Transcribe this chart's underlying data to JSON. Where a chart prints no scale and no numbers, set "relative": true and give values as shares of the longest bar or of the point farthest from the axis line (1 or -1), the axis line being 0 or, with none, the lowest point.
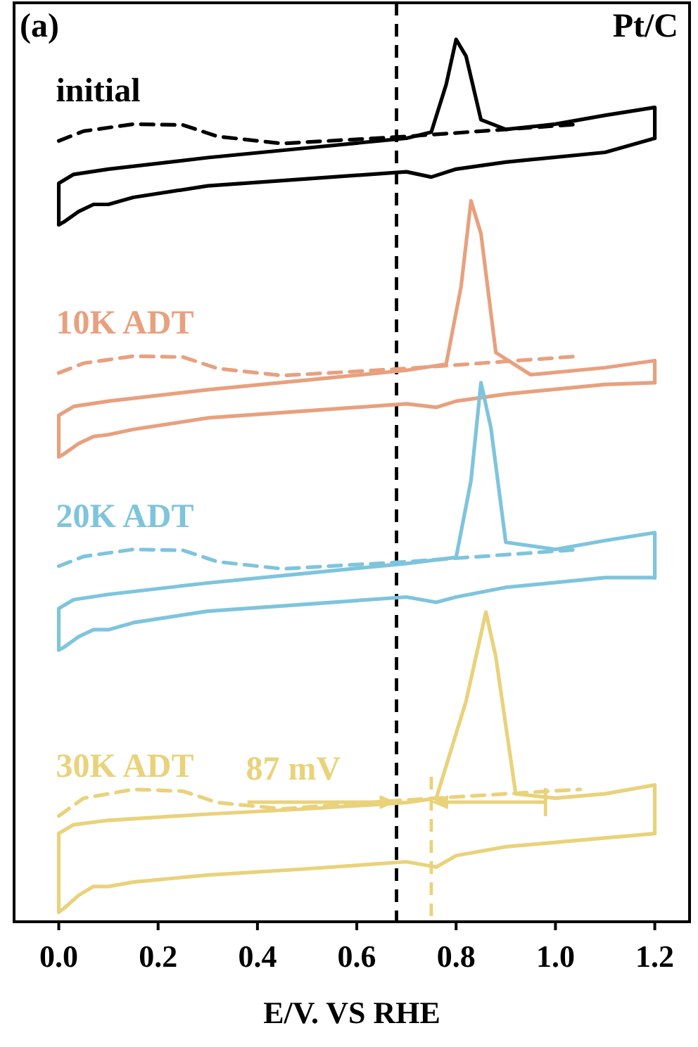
{
  "chart_data": {
    "type": "line",
    "relative": true,
    "xlabel": "E/V. VS RHE",
    "xlim": [
      -0.09,
      1.27
    ],
    "xticks": [
      {
        "value": 0,
        "label": "0.0"
      },
      {
        "value": 0.2,
        "label": "0.2"
      },
      {
        "value": 0.4,
        "label": "0.4"
      },
      {
        "value": 0.6,
        "label": "0.6"
      },
      {
        "value": 0.8,
        "label": "0.8"
      },
      {
        "value": 1.0,
        "label": "1.0"
      },
      {
        "value": 1.2,
        "label": "1.2"
      }
    ],
    "tick_labels": "x",
    "marker": "none",
    "annotations": [
      "(a)",
      "Pt/C",
      "87 mV"
    ],
    "ref_lines": [
      {
        "axis": "x",
        "value": 0.68,
        "color": "#000000",
        "line_style": "dashed"
      },
      {
        "axis": "x",
        "value": 0.75,
        "color": "#e9d27a",
        "line_style": "dashed"
      }
    ],
    "series": [
      {
        "color": "#000000",
        "line_style": "solid",
        "x": [
          0.0,
          0.0,
          0.03,
          0.1,
          0.3,
          0.5,
          0.7,
          0.75,
          0.78,
          0.8,
          0.82,
          0.85,
          0.9,
          1.0,
          1.1,
          1.2,
          1.2
        ],
        "values": [
          0.79,
          0.837,
          0.847,
          0.853,
          0.866,
          0.877,
          0.888,
          0.895,
          0.949,
          1.0,
          0.981,
          0.909,
          0.898,
          0.904,
          0.914,
          0.923,
          0.888
        ]
      },
      {
        "color": "#000000",
        "line_style": "solid",
        "x": [
          0.0,
          0.01,
          0.04,
          0.07,
          0.1,
          0.15,
          0.3,
          0.5,
          0.7,
          0.75,
          0.8,
          0.9,
          1.1,
          1.2
        ],
        "values": [
          0.79,
          0.793,
          0.805,
          0.813,
          0.813,
          0.821,
          0.834,
          0.842,
          0.85,
          0.844,
          0.853,
          0.861,
          0.872,
          0.888
        ]
      },
      {
        "name": "initial",
        "color": "#000000",
        "line_style": "dashed",
        "x": [
          0.0,
          0.05,
          0.15,
          0.25,
          0.32,
          0.45,
          0.7,
          0.9,
          1.05
        ],
        "values": [
          0.885,
          0.896,
          0.904,
          0.903,
          0.89,
          0.882,
          0.89,
          0.898,
          0.904
        ]
      },
      {
        "color": "#e8a07e",
        "line_style": "solid",
        "x": [
          0.0,
          0.0,
          0.03,
          0.1,
          0.3,
          0.5,
          0.7,
          0.78,
          0.81,
          0.83,
          0.85,
          0.88,
          0.95,
          1.1,
          1.2,
          1.2
        ],
        "values": [
          0.527,
          0.574,
          0.584,
          0.59,
          0.603,
          0.614,
          0.625,
          0.632,
          0.72,
          0.817,
          0.78,
          0.645,
          0.62,
          0.628,
          0.636,
          0.611
        ]
      },
      {
        "color": "#e8a07e",
        "line_style": "solid",
        "x": [
          0.0,
          0.01,
          0.04,
          0.07,
          0.1,
          0.15,
          0.3,
          0.5,
          0.7,
          0.76,
          0.8,
          0.9,
          1.1,
          1.2
        ],
        "values": [
          0.527,
          0.53,
          0.542,
          0.55,
          0.552,
          0.558,
          0.571,
          0.579,
          0.587,
          0.583,
          0.59,
          0.598,
          0.609,
          0.611
        ]
      },
      {
        "name": "10K ADT",
        "color": "#e8a07e",
        "line_style": "dashed",
        "x": [
          0.0,
          0.05,
          0.15,
          0.25,
          0.32,
          0.45,
          0.7,
          0.9,
          1.05
        ],
        "values": [
          0.622,
          0.633,
          0.641,
          0.64,
          0.627,
          0.619,
          0.627,
          0.635,
          0.641
        ]
      },
      {
        "color": "#7ec4dd",
        "line_style": "solid",
        "x": [
          0.0,
          0.0,
          0.03,
          0.1,
          0.3,
          0.5,
          0.7,
          0.8,
          0.83,
          0.85,
          0.87,
          0.9,
          1.0,
          1.1,
          1.2,
          1.2
        ],
        "values": [
          0.308,
          0.355,
          0.365,
          0.371,
          0.384,
          0.395,
          0.406,
          0.413,
          0.5,
          0.611,
          0.56,
          0.43,
          0.422,
          0.432,
          0.441,
          0.39
        ]
      },
      {
        "color": "#7ec4dd",
        "line_style": "solid",
        "x": [
          0.0,
          0.01,
          0.04,
          0.07,
          0.1,
          0.15,
          0.3,
          0.5,
          0.7,
          0.76,
          0.8,
          0.9,
          1.1,
          1.2
        ],
        "values": [
          0.308,
          0.311,
          0.323,
          0.331,
          0.331,
          0.339,
          0.352,
          0.36,
          0.368,
          0.362,
          0.368,
          0.379,
          0.39,
          0.39
        ]
      },
      {
        "name": "20K ADT",
        "color": "#7ec4dd",
        "line_style": "dashed",
        "x": [
          0.0,
          0.05,
          0.15,
          0.25,
          0.32,
          0.45,
          0.7,
          0.9,
          1.05
        ],
        "values": [
          0.403,
          0.414,
          0.422,
          0.421,
          0.408,
          0.4,
          0.408,
          0.416,
          0.422
        ]
      },
      {
        "color": "#e9d27a",
        "line_style": "solid",
        "x": [
          0.0,
          0.0,
          0.03,
          0.1,
          0.3,
          0.5,
          0.7,
          0.76,
          0.82,
          0.86,
          0.88,
          0.92,
          1.0,
          1.1,
          1.2,
          1.2
        ],
        "values": [
          0.011,
          0.1,
          0.11,
          0.115,
          0.122,
          0.128,
          0.135,
          0.14,
          0.25,
          0.351,
          0.3,
          0.145,
          0.14,
          0.145,
          0.155,
          0.1
        ]
      },
      {
        "color": "#e9d27a",
        "line_style": "solid",
        "x": [
          0.0,
          0.01,
          0.04,
          0.07,
          0.1,
          0.15,
          0.3,
          0.5,
          0.7,
          0.76,
          0.8,
          0.9,
          1.1,
          1.2
        ],
        "values": [
          0.011,
          0.015,
          0.03,
          0.04,
          0.04,
          0.045,
          0.053,
          0.06,
          0.068,
          0.062,
          0.075,
          0.085,
          0.095,
          0.1
        ]
      },
      {
        "name": "30K ADT",
        "color": "#e9d27a",
        "line_style": "dashed",
        "x": [
          0.0,
          0.05,
          0.15,
          0.25,
          0.32,
          0.45,
          0.7,
          0.9,
          1.05
        ],
        "values": [
          0.12,
          0.14,
          0.15,
          0.148,
          0.135,
          0.128,
          0.138,
          0.145,
          0.15
        ]
      }
    ]
  }
}
